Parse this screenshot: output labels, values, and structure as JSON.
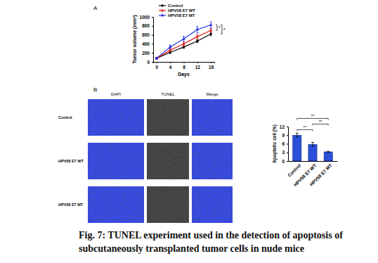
{
  "figure": {
    "panel_labels": [
      "A",
      "B"
    ],
    "image_columns": [
      "DAPI",
      "TUNEL",
      "Merge"
    ],
    "image_rows": [
      "Control",
      "HPV58 E7 WT",
      "HPV58 E7 MT"
    ]
  },
  "chart_data": [
    {
      "type": "line",
      "x_label": "Days",
      "y_label": "Tumor volume (mm³)",
      "x": [
        0,
        4,
        8,
        12,
        16
      ],
      "xlim": [
        -1,
        17
      ],
      "xticks": [
        0,
        4,
        8,
        12,
        16
      ],
      "ylim": [
        0,
        1000
      ],
      "yticks": [
        0,
        200,
        400,
        600,
        800,
        1000
      ],
      "legend": "top",
      "series": [
        {
          "name": "Control",
          "color": "#000000",
          "marker": "circle",
          "values": [
            80,
            210,
            330,
            460,
            620
          ],
          "errors": [
            15,
            25,
            30,
            35,
            40
          ]
        },
        {
          "name": "HPV58 E7 WT",
          "color": "#e3201b",
          "marker": "square",
          "values": [
            80,
            260,
            400,
            560,
            700
          ],
          "errors": [
            15,
            35,
            45,
            50,
            55
          ]
        },
        {
          "name": "HPV58 E7 MT",
          "color": "#1f2ee0",
          "marker": "triangle",
          "values": [
            80,
            330,
            510,
            720,
            820
          ],
          "errors": [
            15,
            45,
            60,
            70,
            70
          ]
        }
      ],
      "annotations": [
        {
          "text": "*",
          "from": "HPV58 E7 MT",
          "to": "HPV58 E7 WT"
        },
        {
          "text": "*",
          "from": "HPV58 E7 MT",
          "to": "Control"
        }
      ]
    },
    {
      "type": "bar",
      "y_label": "Apoptotic cell (%)",
      "categories": [
        "Control",
        "HPV58 E7 WT",
        "HPV58 E7 MT"
      ],
      "values": [
        9,
        5.8,
        3.2
      ],
      "errors": [
        0.7,
        0.7,
        0.2
      ],
      "color": "#2a4fd8",
      "ylim": [
        0,
        12
      ],
      "yticks": [
        0,
        3,
        6,
        9,
        12
      ],
      "annotations": [
        {
          "text": "**",
          "from": "Control",
          "to": "HPV58 E7 WT"
        },
        {
          "text": "**",
          "from": "Control",
          "to": "HPV58 E7 MT"
        },
        {
          "text": "**",
          "from": "HPV58 E7 WT",
          "to": "HPV58 E7 MT"
        }
      ]
    }
  ],
  "caption": [
    "Fig. 7: TUNEL experiment used in the detection of apoptosis of",
    "subcutaneously transplanted tumor cells in nude mice"
  ]
}
